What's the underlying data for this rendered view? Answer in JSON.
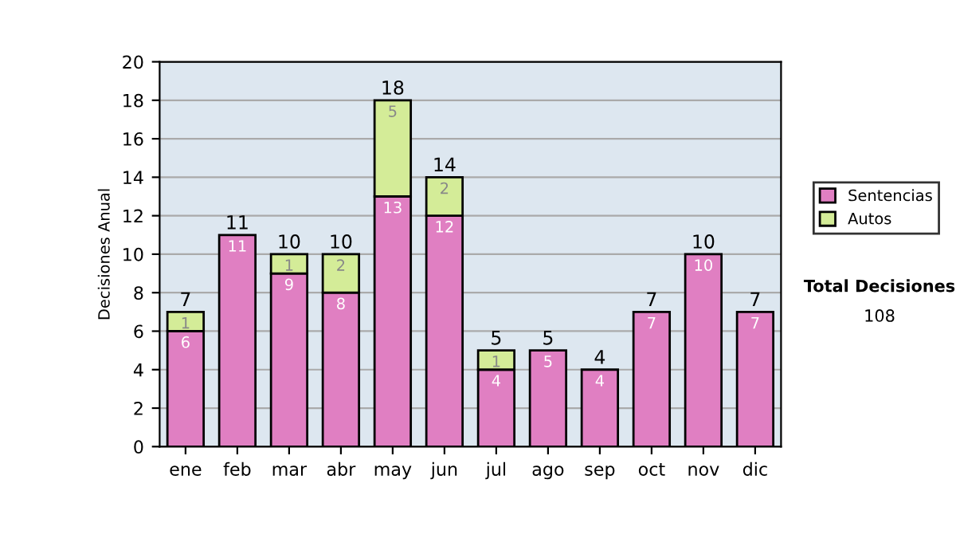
{
  "chart_data": {
    "type": "bar",
    "stacked": true,
    "ylabel": "Decisiones Anual",
    "categories": [
      "ene",
      "feb",
      "mar",
      "abr",
      "may",
      "jun",
      "jul",
      "ago",
      "sep",
      "oct",
      "nov",
      "dic"
    ],
    "series": [
      {
        "name": "Sentencias",
        "color": "#e07fc2",
        "values": [
          6,
          11,
          9,
          8,
          13,
          12,
          4,
          5,
          4,
          7,
          10,
          7
        ],
        "value_labels": [
          "6",
          "11",
          "9",
          "8",
          "13",
          "12",
          "4",
          "5",
          "4",
          "7",
          "10",
          "7"
        ]
      },
      {
        "name": "Autos",
        "color": "#d4ec98",
        "values": [
          1,
          null,
          1,
          2,
          5,
          2,
          1,
          null,
          null,
          null,
          null,
          null
        ],
        "value_labels": [
          "1",
          null,
          "1",
          "2",
          "5",
          "2",
          "1",
          null,
          null,
          null,
          null,
          null
        ]
      }
    ],
    "totals": [
      "7",
      "11",
      "10",
      "10",
      "18",
      "14",
      "5",
      "5",
      "4",
      "7",
      "10",
      "7"
    ],
    "ylim": [
      0,
      20
    ],
    "yticks": [
      0,
      2,
      4,
      6,
      8,
      10,
      12,
      14,
      16,
      18,
      20
    ],
    "grid": "y",
    "legend": "right",
    "annotations": [
      "Total Decisiones",
      "108"
    ]
  }
}
